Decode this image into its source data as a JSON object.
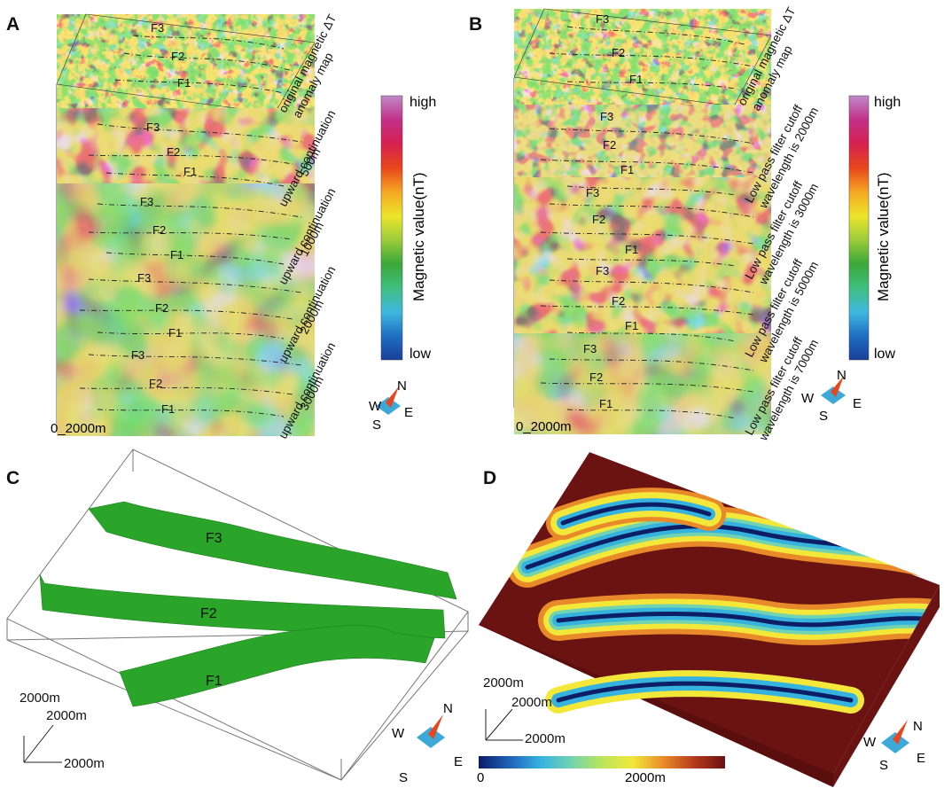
{
  "panels": {
    "A": {
      "label": "A",
      "layers": [
        {
          "caption": [
            "original magnetic ΔT",
            "anomaly map"
          ]
        },
        {
          "caption": [
            "upward continuation",
            "500m"
          ]
        },
        {
          "caption": [
            "upward continuation",
            "1000m"
          ]
        },
        {
          "caption": [
            "upward continuation",
            "2000m"
          ]
        },
        {
          "caption": [
            "upward continuation",
            "3000m"
          ]
        }
      ],
      "scale": "0_2000m"
    },
    "B": {
      "label": "B",
      "layers": [
        {
          "caption": [
            "original magnetic ΔT",
            "anomaly map"
          ]
        },
        {
          "caption": [
            "Low pass filter cutoff",
            "wavelength is 2000m"
          ]
        },
        {
          "caption": [
            "Low pass filter cutoff",
            "wavelength is 3000m"
          ]
        },
        {
          "caption": [
            "Low pass filter cutoff",
            "wavelength is 5000m"
          ]
        },
        {
          "caption": [
            "Low pass filter cutoff",
            "wavelength is 7000m"
          ]
        }
      ],
      "scale": "0_2000m"
    },
    "C": {
      "label": "C",
      "axes": [
        "2000m",
        "2000m",
        "2000m"
      ]
    },
    "D": {
      "label": "D",
      "axes": [
        "2000m",
        "2000m",
        "2000m"
      ],
      "colorbar": {
        "min": "0",
        "max": "2000m"
      }
    }
  },
  "faults": [
    "F1",
    "F2",
    "F3"
  ],
  "legend": {
    "high": "high",
    "low": "low",
    "title": "Magnetic value(nT)"
  },
  "compass": {
    "n": "N",
    "s": "S",
    "e": "E",
    "w": "W"
  },
  "colors": {
    "fault_surface": "#2aa52a",
    "compass_needle": "#e8461c",
    "compass_body": "#3da9d8",
    "magnetic_ramp": [
      "#1b3f99",
      "#1e6fc2",
      "#3fb8e0",
      "#3fbf7f",
      "#3aa83a",
      "#9ccc3a",
      "#ede52a",
      "#f5a623",
      "#e8461c",
      "#d6204f",
      "#c2308a",
      "#c08ac9"
    ],
    "distance_ramp": [
      "#0b1e66",
      "#1f62b8",
      "#36b2df",
      "#72d3b0",
      "#b9e55a",
      "#f3e83a",
      "#e98a2a",
      "#b53a1a",
      "#6b1212"
    ]
  }
}
